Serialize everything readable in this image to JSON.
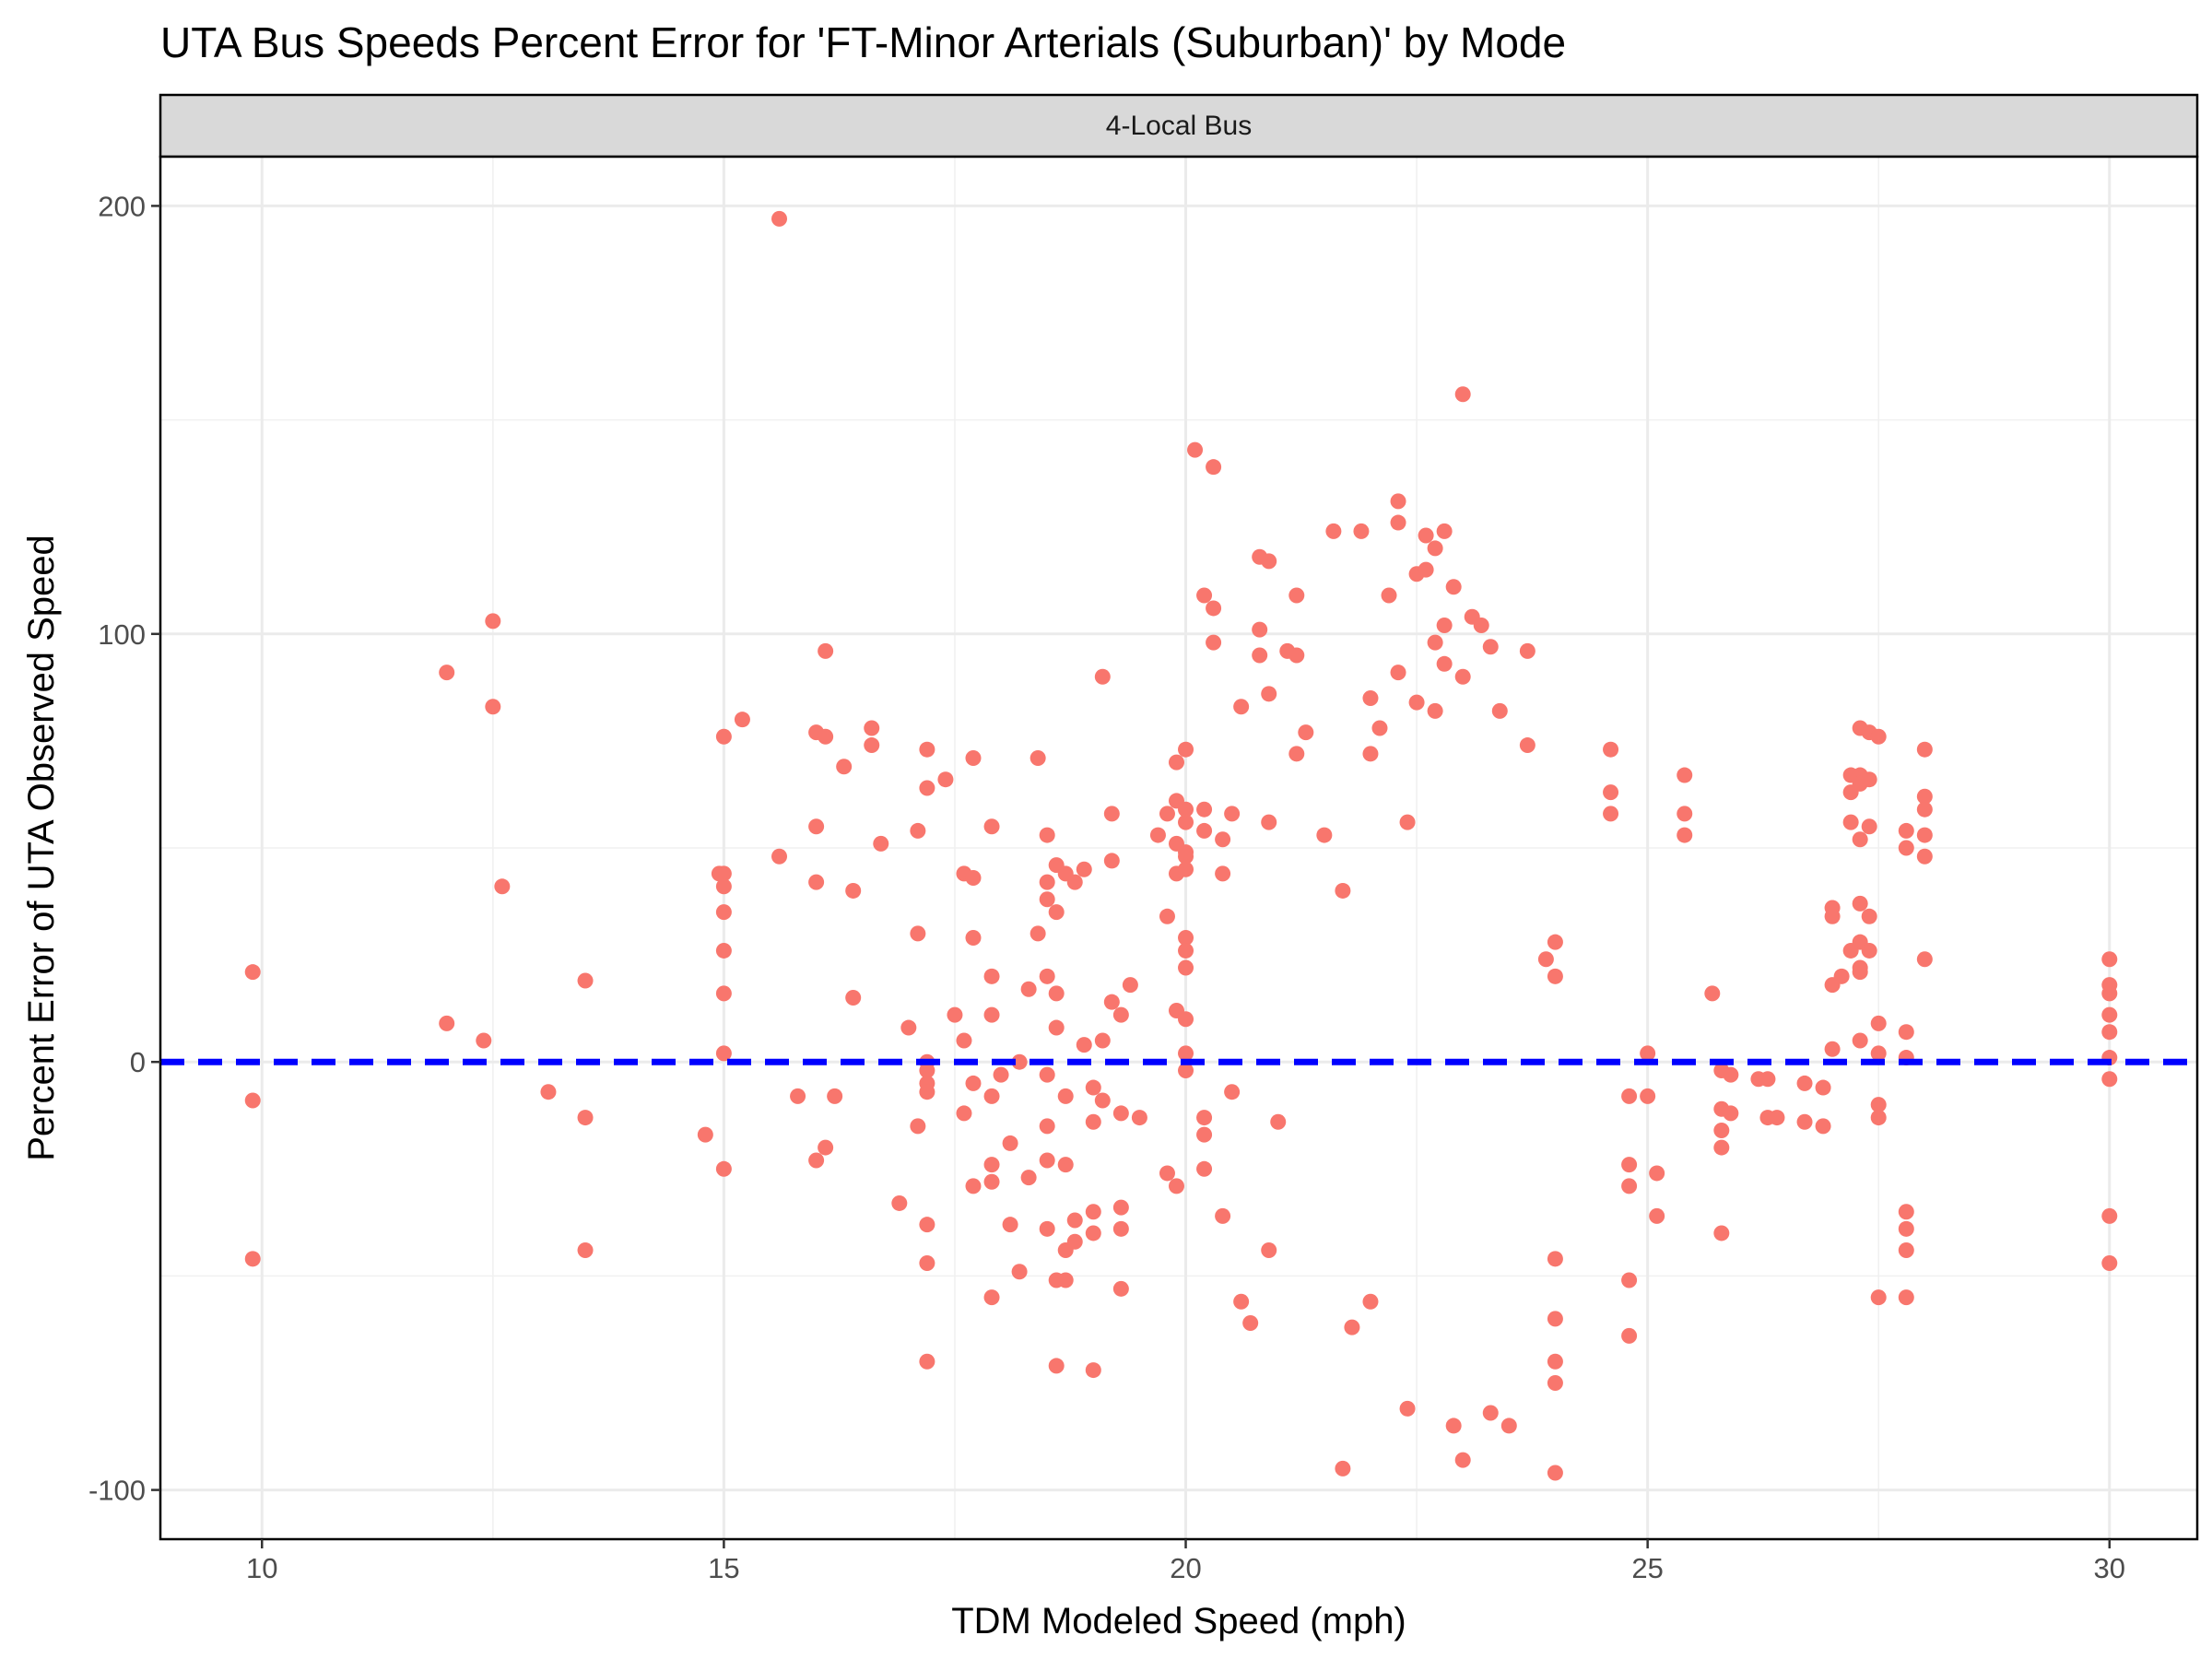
{
  "chart_data": {
    "type": "scatter",
    "title": "UTA Bus Speeds Percent Error for 'FT-Minor Arterials (Suburban)' by Mode",
    "facet_label": "4-Local Bus",
    "xlabel": "TDM Modeled Speed (mph)",
    "ylabel": "Percent Error of UTA Observed Speed",
    "xlim": [
      8.9,
      30.95
    ],
    "ylim": [
      -111.5,
      211.5
    ],
    "x_ticks": [
      10,
      15,
      20,
      25,
      30
    ],
    "y_ticks": [
      -100,
      0,
      100,
      200
    ],
    "y_minor_ticks": [
      -50,
      50,
      150
    ],
    "x_minor_ticks": [
      12.5,
      17.5,
      22.5,
      27.5
    ],
    "reference_line": {
      "y": 0,
      "style": "dashed",
      "color": "#0000ff"
    },
    "point_color": "#f8766d",
    "grid": true,
    "points": [
      [
        9.9,
        21
      ],
      [
        9.9,
        -9
      ],
      [
        9.9,
        -46
      ],
      [
        12,
        91
      ],
      [
        12,
        9
      ],
      [
        12.4,
        5
      ],
      [
        12.5,
        103
      ],
      [
        12.5,
        83
      ],
      [
        12.6,
        41
      ],
      [
        13.1,
        -7
      ],
      [
        13.5,
        19
      ],
      [
        13.5,
        -13
      ],
      [
        13.5,
        -44
      ],
      [
        14.8,
        -17
      ],
      [
        14.95,
        44
      ],
      [
        15,
        76
      ],
      [
        15,
        44
      ],
      [
        15,
        41
      ],
      [
        15,
        35
      ],
      [
        15,
        26
      ],
      [
        15,
        16
      ],
      [
        15,
        2
      ],
      [
        15,
        -25
      ],
      [
        15.2,
        80
      ],
      [
        15.6,
        197
      ],
      [
        15.6,
        48
      ],
      [
        15.8,
        -8
      ],
      [
        16,
        77
      ],
      [
        16,
        55
      ],
      [
        16,
        42
      ],
      [
        16,
        -23
      ],
      [
        16.1,
        76
      ],
      [
        16.1,
        96
      ],
      [
        16.1,
        -20
      ],
      [
        16.2,
        -8
      ],
      [
        16.3,
        69
      ],
      [
        16.4,
        40
      ],
      [
        16.4,
        15
      ],
      [
        16.6,
        78
      ],
      [
        16.6,
        74
      ],
      [
        16.7,
        51
      ],
      [
        16.9,
        -33
      ],
      [
        17,
        8
      ],
      [
        17.1,
        54
      ],
      [
        17.1,
        30
      ],
      [
        17.1,
        -15
      ],
      [
        17.2,
        73
      ],
      [
        17.2,
        64
      ],
      [
        17.2,
        0
      ],
      [
        17.2,
        -2
      ],
      [
        17.2,
        -5
      ],
      [
        17.2,
        -7
      ],
      [
        17.2,
        -38
      ],
      [
        17.2,
        -47
      ],
      [
        17.2,
        -70
      ],
      [
        17.4,
        66
      ],
      [
        17.5,
        11
      ],
      [
        17.6,
        44
      ],
      [
        17.6,
        5
      ],
      [
        17.6,
        -12
      ],
      [
        17.7,
        71
      ],
      [
        17.7,
        43
      ],
      [
        17.7,
        29
      ],
      [
        17.7,
        -5
      ],
      [
        17.7,
        -29
      ],
      [
        17.9,
        55
      ],
      [
        17.9,
        20
      ],
      [
        17.9,
        11
      ],
      [
        17.9,
        -8
      ],
      [
        17.9,
        -24
      ],
      [
        17.9,
        -28
      ],
      [
        17.9,
        -55
      ],
      [
        18,
        -3
      ],
      [
        18.1,
        -19
      ],
      [
        18.1,
        -38
      ],
      [
        18.2,
        -49
      ],
      [
        18.2,
        0
      ],
      [
        18.3,
        17
      ],
      [
        18.3,
        -27
      ],
      [
        18.4,
        71
      ],
      [
        18.4,
        30
      ],
      [
        18.5,
        53
      ],
      [
        18.5,
        42
      ],
      [
        18.5,
        38
      ],
      [
        18.5,
        20
      ],
      [
        18.5,
        -3
      ],
      [
        18.5,
        -15
      ],
      [
        18.5,
        -23
      ],
      [
        18.5,
        -39
      ],
      [
        18.6,
        46
      ],
      [
        18.6,
        35
      ],
      [
        18.6,
        16
      ],
      [
        18.6,
        8
      ],
      [
        18.6,
        -51
      ],
      [
        18.6,
        -71
      ],
      [
        18.7,
        44
      ],
      [
        18.7,
        -8
      ],
      [
        18.7,
        -24
      ],
      [
        18.7,
        -44
      ],
      [
        18.7,
        -51
      ],
      [
        18.8,
        42
      ],
      [
        18.8,
        -37
      ],
      [
        18.8,
        -42
      ],
      [
        18.9,
        45
      ],
      [
        18.9,
        4
      ],
      [
        19,
        -72
      ],
      [
        19,
        -6
      ],
      [
        19,
        -14
      ],
      [
        19,
        -35
      ],
      [
        19,
        -40
      ],
      [
        19.1,
        90
      ],
      [
        19.1,
        5
      ],
      [
        19.1,
        -9
      ],
      [
        19.2,
        58
      ],
      [
        19.2,
        47
      ],
      [
        19.2,
        14
      ],
      [
        19.3,
        11
      ],
      [
        19.3,
        -12
      ],
      [
        19.3,
        -39
      ],
      [
        19.3,
        -53
      ],
      [
        19.3,
        -34
      ],
      [
        19.4,
        18
      ],
      [
        19.5,
        -13
      ],
      [
        19.7,
        53
      ],
      [
        19.8,
        58
      ],
      [
        19.8,
        34
      ],
      [
        19.8,
        -26
      ],
      [
        19.9,
        70
      ],
      [
        19.9,
        61
      ],
      [
        19.9,
        51
      ],
      [
        19.9,
        44
      ],
      [
        19.9,
        12
      ],
      [
        19.9,
        -29
      ],
      [
        20,
        73
      ],
      [
        20,
        59
      ],
      [
        20,
        56
      ],
      [
        20,
        49
      ],
      [
        20,
        48
      ],
      [
        20,
        45
      ],
      [
        20,
        29
      ],
      [
        20,
        26
      ],
      [
        20,
        22
      ],
      [
        20,
        10
      ],
      [
        20,
        2
      ],
      [
        20,
        -2
      ],
      [
        20.1,
        143
      ],
      [
        20.2,
        109
      ],
      [
        20.2,
        59
      ],
      [
        20.2,
        54
      ],
      [
        20.2,
        -13
      ],
      [
        20.2,
        -17
      ],
      [
        20.2,
        -25
      ],
      [
        20.3,
        139
      ],
      [
        20.3,
        106
      ],
      [
        20.3,
        98
      ],
      [
        20.4,
        52
      ],
      [
        20.4,
        44
      ],
      [
        20.4,
        -36
      ],
      [
        20.5,
        58
      ],
      [
        20.5,
        -7
      ],
      [
        20.6,
        83
      ],
      [
        20.6,
        -56
      ],
      [
        20.7,
        -61
      ],
      [
        20.8,
        118
      ],
      [
        20.8,
        101
      ],
      [
        20.8,
        95
      ],
      [
        20.9,
        117
      ],
      [
        20.9,
        86
      ],
      [
        20.9,
        56
      ],
      [
        20.9,
        -44
      ],
      [
        21,
        -14
      ],
      [
        21.1,
        96
      ],
      [
        21.2,
        109
      ],
      [
        21.2,
        95
      ],
      [
        21.2,
        72
      ],
      [
        21.3,
        77
      ],
      [
        21.5,
        53
      ],
      [
        21.6,
        124
      ],
      [
        21.7,
        40
      ],
      [
        21.7,
        -95
      ],
      [
        21.8,
        -62
      ],
      [
        21.9,
        124
      ],
      [
        22,
        85
      ],
      [
        22,
        72
      ],
      [
        22,
        -56
      ],
      [
        22.1,
        78
      ],
      [
        22.2,
        109
      ],
      [
        22.3,
        131
      ],
      [
        22.3,
        126
      ],
      [
        22.3,
        91
      ],
      [
        22.4,
        56
      ],
      [
        22.4,
        -81
      ],
      [
        22.5,
        114
      ],
      [
        22.5,
        84
      ],
      [
        22.6,
        123
      ],
      [
        22.6,
        115
      ],
      [
        22.7,
        120
      ],
      [
        22.7,
        98
      ],
      [
        22.7,
        82
      ],
      [
        22.8,
        124
      ],
      [
        22.8,
        102
      ],
      [
        22.8,
        93
      ],
      [
        22.9,
        111
      ],
      [
        22.9,
        -85
      ],
      [
        23,
        156
      ],
      [
        23,
        90
      ],
      [
        23,
        -93
      ],
      [
        23.1,
        104
      ],
      [
        23.2,
        102
      ],
      [
        23.3,
        97
      ],
      [
        23.3,
        -82
      ],
      [
        23.4,
        82
      ],
      [
        23.5,
        -85
      ],
      [
        23.7,
        96
      ],
      [
        23.7,
        74
      ],
      [
        23.9,
        24
      ],
      [
        24,
        28
      ],
      [
        24,
        20
      ],
      [
        24,
        -46
      ],
      [
        24,
        -60
      ],
      [
        24,
        -70
      ],
      [
        24,
        -75
      ],
      [
        24,
        -96
      ],
      [
        24.6,
        73
      ],
      [
        24.6,
        63
      ],
      [
        24.6,
        58
      ],
      [
        24.8,
        -8
      ],
      [
        24.8,
        -24
      ],
      [
        24.8,
        -29
      ],
      [
        24.8,
        -51
      ],
      [
        24.8,
        -64
      ],
      [
        25,
        2
      ],
      [
        25,
        -8
      ],
      [
        25.1,
        -26
      ],
      [
        25.1,
        -36
      ],
      [
        25.4,
        67
      ],
      [
        25.4,
        58
      ],
      [
        25.4,
        53
      ],
      [
        25.7,
        16
      ],
      [
        25.8,
        -2
      ],
      [
        25.8,
        -11
      ],
      [
        25.8,
        -16
      ],
      [
        25.8,
        -20
      ],
      [
        25.8,
        -40
      ],
      [
        25.9,
        -3
      ],
      [
        25.9,
        -12
      ],
      [
        26.2,
        -4
      ],
      [
        26.3,
        -4
      ],
      [
        26.3,
        -13
      ],
      [
        26.4,
        -13
      ],
      [
        26.7,
        -5
      ],
      [
        26.7,
        -14
      ],
      [
        26.9,
        -6
      ],
      [
        26.9,
        -15
      ],
      [
        27,
        36
      ],
      [
        27,
        34
      ],
      [
        27,
        18
      ],
      [
        27,
        3
      ],
      [
        27.1,
        20
      ],
      [
        27.2,
        67
      ],
      [
        27.2,
        63
      ],
      [
        27.2,
        56
      ],
      [
        27.2,
        26
      ],
      [
        27.3,
        78
      ],
      [
        27.3,
        67
      ],
      [
        27.3,
        65
      ],
      [
        27.3,
        52
      ],
      [
        27.3,
        37
      ],
      [
        27.3,
        28
      ],
      [
        27.3,
        22
      ],
      [
        27.3,
        21
      ],
      [
        27.3,
        5
      ],
      [
        27.4,
        77
      ],
      [
        27.4,
        66
      ],
      [
        27.4,
        55
      ],
      [
        27.4,
        34
      ],
      [
        27.4,
        26
      ],
      [
        27.5,
        76
      ],
      [
        27.5,
        9
      ],
      [
        27.5,
        2
      ],
      [
        27.5,
        -10
      ],
      [
        27.5,
        -13
      ],
      [
        27.5,
        -55
      ],
      [
        27.8,
        54
      ],
      [
        27.8,
        50
      ],
      [
        27.8,
        7
      ],
      [
        27.8,
        1
      ],
      [
        27.8,
        -35
      ],
      [
        27.8,
        -39
      ],
      [
        27.8,
        -44
      ],
      [
        27.8,
        -55
      ],
      [
        28,
        73
      ],
      [
        28,
        62
      ],
      [
        28,
        59
      ],
      [
        28,
        53
      ],
      [
        28,
        48
      ],
      [
        28,
        24
      ],
      [
        30,
        24
      ],
      [
        30,
        18
      ],
      [
        30,
        16
      ],
      [
        30,
        11
      ],
      [
        30,
        7
      ],
      [
        30,
        1
      ],
      [
        30,
        -4
      ],
      [
        30,
        -36
      ],
      [
        30,
        -47
      ]
    ]
  }
}
